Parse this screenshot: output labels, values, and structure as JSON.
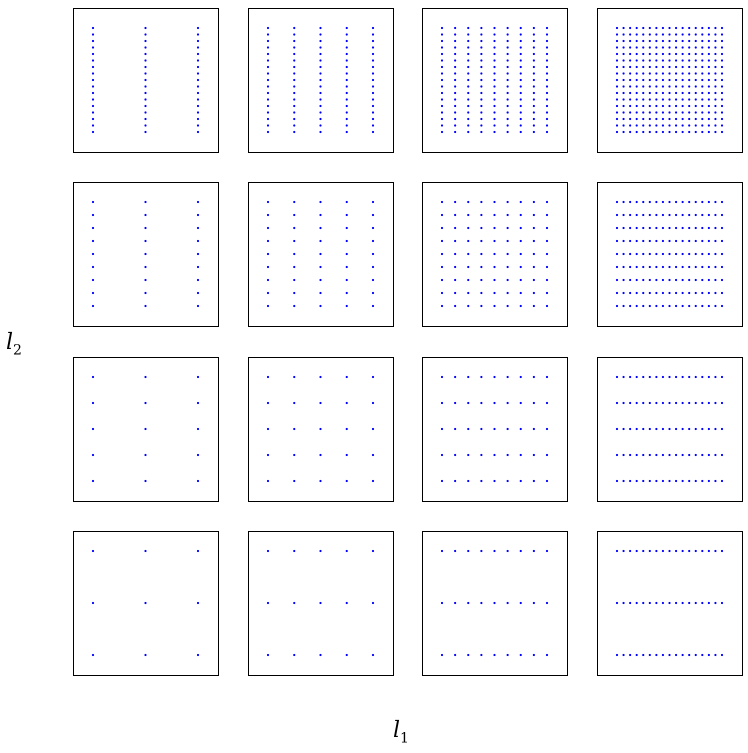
{
  "figure": {
    "xlabel_base": "l",
    "xlabel_sub": "1",
    "ylabel_base": "l",
    "ylabel_sub": "2",
    "point_color": "#0000ff",
    "frame_color": "#000000"
  },
  "grid_panels": {
    "columns_l1": [
      3,
      5,
      9,
      17
    ],
    "rows_l2": [
      17,
      9,
      5,
      3
    ]
  }
}
